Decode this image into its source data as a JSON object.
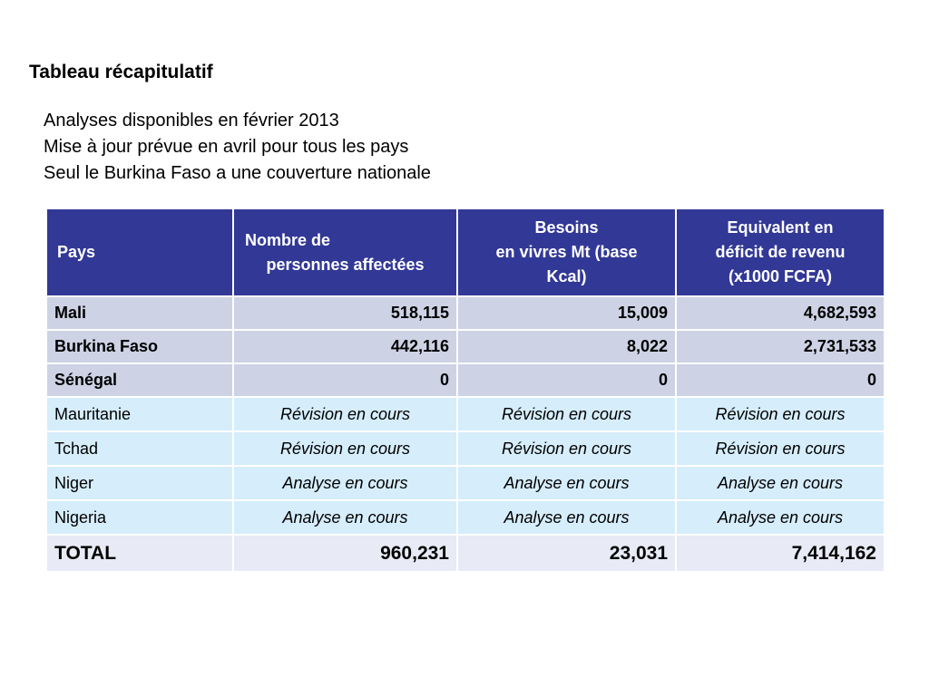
{
  "title": "Tableau récapitulatif",
  "subtitle_lines": [
    "Analyses disponibles en février 2013",
    "Mise à jour prévue en avril pour tous les pays",
    "Seul le Burkina Faso a une couverture nationale"
  ],
  "table": {
    "headers": {
      "country": "Pays",
      "people_line1": "Nombre de",
      "people_line2": "personnes affectées",
      "needs_line1": "Besoins",
      "needs_line2": "en vivres Mt (base",
      "needs_line3": "Kcal)",
      "deficit_line1": "Equivalent en",
      "deficit_line2": "déficit de revenu",
      "deficit_line3": "(x1000 FCFA)"
    },
    "rows": [
      {
        "country": "Mali",
        "people": "518,115",
        "needs": "15,009",
        "deficit": "4,682,593"
      },
      {
        "country": "Burkina Faso",
        "people": "442,116",
        "needs": "8,022",
        "deficit": "2,731,533"
      },
      {
        "country": "Sénégal",
        "people": "0",
        "needs": "0",
        "deficit": "0"
      },
      {
        "country": "Mauritanie",
        "people": "Révision en cours",
        "needs": "Révision en cours",
        "deficit": "Révision en cours"
      },
      {
        "country": "Tchad",
        "people": "Révision en cours",
        "needs": "Révision en cours",
        "deficit": "Révision en cours"
      },
      {
        "country": "Niger",
        "people": "Analyse en cours",
        "needs": "Analyse en cours",
        "deficit": "Analyse en cours"
      },
      {
        "country": "Nigeria",
        "people": "Analyse en cours",
        "needs": "Analyse en cours",
        "deficit": "Analyse en cours"
      }
    ],
    "total": {
      "label": "TOTAL",
      "people": "960,231",
      "needs": "23,031",
      "deficit": "7,414,162"
    }
  },
  "colors": {
    "header_bg": "#323896",
    "row_dark_bg": "#cdd2e4",
    "row_light_bg": "#d6edfb",
    "total_bg": "#e8eaf5"
  }
}
